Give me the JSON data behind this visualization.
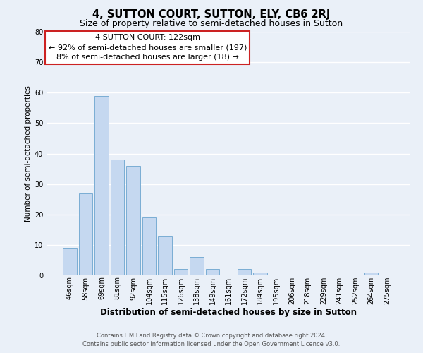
{
  "title": "4, SUTTON COURT, SUTTON, ELY, CB6 2RJ",
  "subtitle": "Size of property relative to semi-detached houses in Sutton",
  "xlabel": "Distribution of semi-detached houses by size in Sutton",
  "ylabel": "Number of semi-detached properties",
  "bar_labels": [
    "46sqm",
    "58sqm",
    "69sqm",
    "81sqm",
    "92sqm",
    "104sqm",
    "115sqm",
    "126sqm",
    "138sqm",
    "149sqm",
    "161sqm",
    "172sqm",
    "184sqm",
    "195sqm",
    "206sqm",
    "218sqm",
    "229sqm",
    "241sqm",
    "252sqm",
    "264sqm",
    "275sqm"
  ],
  "bar_values": [
    9,
    27,
    59,
    38,
    36,
    19,
    13,
    2,
    6,
    2,
    0,
    2,
    1,
    0,
    0,
    0,
    0,
    0,
    0,
    1,
    0
  ],
  "bar_color": "#c5d8f0",
  "bar_edge_color": "#7aadd4",
  "ylim": [
    0,
    80
  ],
  "yticks": [
    0,
    10,
    20,
    30,
    40,
    50,
    60,
    70,
    80
  ],
  "annotation_title": "4 SUTTON COURT: 122sqm",
  "annotation_line1": "← 92% of semi-detached houses are smaller (197)",
  "annotation_line2": "8% of semi-detached houses are larger (18) →",
  "annotation_box_color": "#ffffff",
  "annotation_box_edge": "#cc2222",
  "footer_line1": "Contains HM Land Registry data © Crown copyright and database right 2024.",
  "footer_line2": "Contains public sector information licensed under the Open Government Licence v3.0.",
  "bg_color": "#eaf0f8",
  "grid_color": "#ffffff",
  "title_fontsize": 10.5,
  "subtitle_fontsize": 9,
  "xlabel_fontsize": 8.5,
  "ylabel_fontsize": 7.5,
  "tick_fontsize": 7,
  "footer_fontsize": 6,
  "annotation_fontsize": 8
}
